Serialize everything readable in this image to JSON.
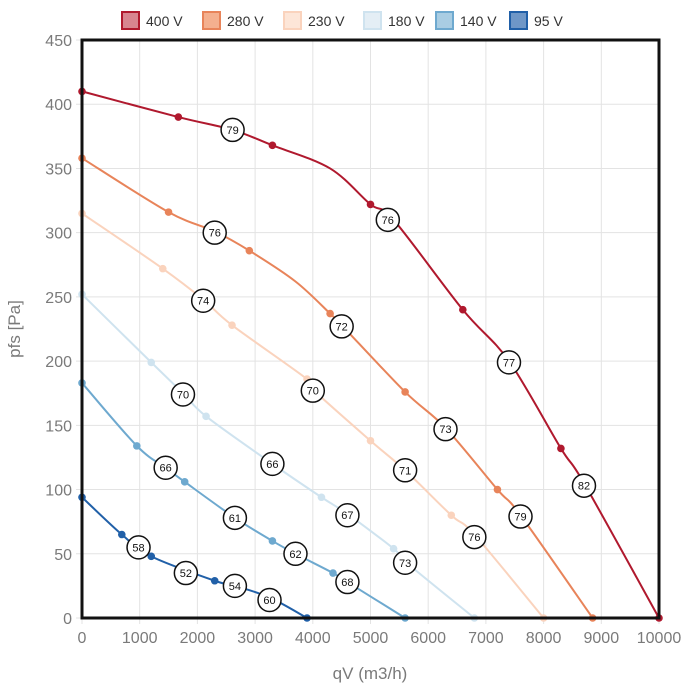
{
  "chart_data": {
    "type": "line",
    "xlabel": "qV (m3/h)",
    "ylabel": "pfs [Pa]",
    "xlim": [
      0,
      10000
    ],
    "ylim": [
      0,
      450
    ],
    "x_ticks": [
      0,
      1000,
      2000,
      3000,
      4000,
      5000,
      6000,
      7000,
      8000,
      9000,
      10000
    ],
    "y_ticks": [
      0,
      50,
      100,
      150,
      200,
      250,
      300,
      350,
      400,
      450
    ],
    "grid": true,
    "legend_position": "top",
    "series": [
      {
        "name": "400 V",
        "color": "#b0192e",
        "fill": "#d88590",
        "points": [
          [
            0,
            410
          ],
          [
            1670,
            390
          ],
          [
            2610,
            380
          ],
          [
            3300,
            368
          ],
          [
            4300,
            350
          ],
          [
            5000,
            322
          ],
          [
            5400,
            310
          ],
          [
            6600,
            240
          ],
          [
            7400,
            200
          ],
          [
            8300,
            132
          ],
          [
            8700,
            105
          ],
          [
            10000,
            0
          ]
        ],
        "markers": [
          [
            0,
            410
          ],
          [
            1670,
            390
          ],
          [
            3300,
            368
          ],
          [
            5000,
            322
          ],
          [
            6600,
            240
          ],
          [
            8300,
            132
          ],
          [
            10000,
            0
          ]
        ]
      },
      {
        "name": "280 V",
        "color": "#e8845a",
        "fill": "#f4b08f",
        "points": [
          [
            0,
            358
          ],
          [
            1500,
            316
          ],
          [
            2300,
            301
          ],
          [
            2900,
            286
          ],
          [
            3700,
            262
          ],
          [
            4300,
            237
          ],
          [
            4500,
            228
          ],
          [
            5600,
            176
          ],
          [
            6300,
            148
          ],
          [
            7200,
            100
          ],
          [
            7600,
            80
          ],
          [
            8850,
            0
          ]
        ],
        "markers": [
          [
            0,
            358
          ],
          [
            1500,
            316
          ],
          [
            2900,
            286
          ],
          [
            4300,
            237
          ],
          [
            5600,
            176
          ],
          [
            7200,
            100
          ],
          [
            8850,
            0
          ]
        ]
      },
      {
        "name": "230 V",
        "color": "#fad3bd",
        "fill": "#fde6d8",
        "points": [
          [
            0,
            315
          ],
          [
            1400,
            272
          ],
          [
            2100,
            248
          ],
          [
            2600,
            228
          ],
          [
            3900,
            186
          ],
          [
            4000,
            178
          ],
          [
            5000,
            138
          ],
          [
            5600,
            115
          ],
          [
            6400,
            80
          ],
          [
            6800,
            65
          ],
          [
            8000,
            0
          ]
        ],
        "markers": [
          [
            0,
            315
          ],
          [
            1400,
            272
          ],
          [
            2600,
            228
          ],
          [
            3900,
            186
          ],
          [
            5000,
            138
          ],
          [
            6400,
            80
          ],
          [
            8000,
            0
          ]
        ]
      },
      {
        "name": "180 V",
        "color": "#cfe3ef",
        "fill": "#e4eef5",
        "points": [
          [
            0,
            252
          ],
          [
            1200,
            199
          ],
          [
            1750,
            175
          ],
          [
            2150,
            157
          ],
          [
            3300,
            120
          ],
          [
            4150,
            94
          ],
          [
            4600,
            81
          ],
          [
            5400,
            54
          ],
          [
            5600,
            44
          ],
          [
            6800,
            0
          ]
        ],
        "markers": [
          [
            0,
            252
          ],
          [
            1200,
            199
          ],
          [
            2150,
            157
          ],
          [
            4150,
            94
          ],
          [
            5400,
            54
          ],
          [
            6800,
            0
          ]
        ]
      },
      {
        "name": "140 V",
        "color": "#6ea9cf",
        "fill": "#a9cde3",
        "points": [
          [
            0,
            183
          ],
          [
            950,
            134
          ],
          [
            1450,
            117
          ],
          [
            1780,
            106
          ],
          [
            2650,
            78
          ],
          [
            3300,
            60
          ],
          [
            3700,
            50
          ],
          [
            4350,
            35
          ],
          [
            4600,
            28
          ],
          [
            5600,
            0
          ]
        ],
        "markers": [
          [
            0,
            183
          ],
          [
            950,
            134
          ],
          [
            1780,
            106
          ],
          [
            3300,
            60
          ],
          [
            4350,
            35
          ],
          [
            5600,
            0
          ]
        ]
      },
      {
        "name": "95 V",
        "color": "#2160a8",
        "fill": "#6f97c7",
        "points": [
          [
            0,
            94
          ],
          [
            690,
            65
          ],
          [
            1200,
            48
          ],
          [
            2300,
            29
          ],
          [
            2650,
            25
          ],
          [
            3250,
            16
          ],
          [
            3900,
            0
          ]
        ],
        "markers": [
          [
            0,
            94
          ],
          [
            690,
            65
          ],
          [
            1200,
            48
          ],
          [
            2300,
            29
          ],
          [
            3900,
            0
          ]
        ]
      }
    ],
    "efficiency_labels": [
      {
        "x": 2610,
        "y": 380,
        "label": "79"
      },
      {
        "x": 5300,
        "y": 310,
        "label": "76"
      },
      {
        "x": 7400,
        "y": 199,
        "label": "77"
      },
      {
        "x": 8700,
        "y": 103,
        "label": "82"
      },
      {
        "x": 2300,
        "y": 300,
        "label": "76"
      },
      {
        "x": 4500,
        "y": 227,
        "label": "72"
      },
      {
        "x": 6300,
        "y": 147,
        "label": "73"
      },
      {
        "x": 7600,
        "y": 79,
        "label": "79"
      },
      {
        "x": 2100,
        "y": 247,
        "label": "74"
      },
      {
        "x": 4000,
        "y": 177,
        "label": "70"
      },
      {
        "x": 5600,
        "y": 115,
        "label": "71"
      },
      {
        "x": 6800,
        "y": 63,
        "label": "76"
      },
      {
        "x": 1750,
        "y": 174,
        "label": "70"
      },
      {
        "x": 3300,
        "y": 120,
        "label": "66"
      },
      {
        "x": 4600,
        "y": 80,
        "label": "67"
      },
      {
        "x": 5600,
        "y": 43,
        "label": "73"
      },
      {
        "x": 1450,
        "y": 117,
        "label": "66"
      },
      {
        "x": 2650,
        "y": 78,
        "label": "61"
      },
      {
        "x": 3700,
        "y": 50,
        "label": "62"
      },
      {
        "x": 4600,
        "y": 28,
        "label": "68"
      },
      {
        "x": 980,
        "y": 55,
        "label": "58"
      },
      {
        "x": 1800,
        "y": 35,
        "label": "52"
      },
      {
        "x": 2650,
        "y": 25,
        "label": "54"
      },
      {
        "x": 3250,
        "y": 14,
        "label": "60"
      }
    ]
  }
}
